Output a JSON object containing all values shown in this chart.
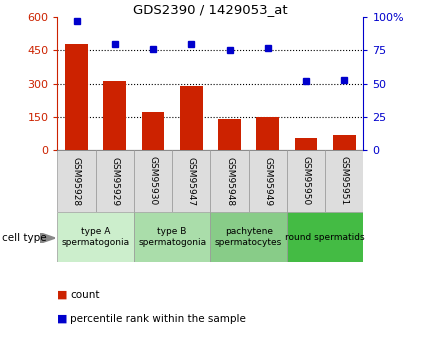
{
  "title": "GDS2390 / 1429053_at",
  "samples": [
    "GSM95928",
    "GSM95929",
    "GSM95930",
    "GSM95947",
    "GSM95948",
    "GSM95949",
    "GSM95950",
    "GSM95951"
  ],
  "counts": [
    480,
    310,
    170,
    290,
    140,
    150,
    55,
    70
  ],
  "percentiles": [
    97,
    80,
    76,
    80,
    75,
    77,
    52,
    53
  ],
  "ylim_left": [
    0,
    600
  ],
  "ylim_right": [
    0,
    100
  ],
  "yticks_left": [
    0,
    150,
    300,
    450,
    600
  ],
  "yticks_right": [
    0,
    25,
    50,
    75,
    100
  ],
  "bar_color": "#cc2200",
  "dot_color": "#0000cc",
  "cell_types": [
    {
      "label": "type A\nspermatogonia",
      "start": 0,
      "end": 2,
      "color": "#cceecc"
    },
    {
      "label": "type B\nspermatogonia",
      "start": 2,
      "end": 4,
      "color": "#aaddaa"
    },
    {
      "label": "pachytene\nspermatocytes",
      "start": 4,
      "end": 6,
      "color": "#88cc88"
    },
    {
      "label": "round spermatids",
      "start": 6,
      "end": 8,
      "color": "#44bb44"
    }
  ],
  "legend_count_label": "count",
  "legend_pct_label": "percentile rank within the sample",
  "cell_type_label": "cell type",
  "sample_box_color": "#dddddd",
  "background_color": "#ffffff"
}
